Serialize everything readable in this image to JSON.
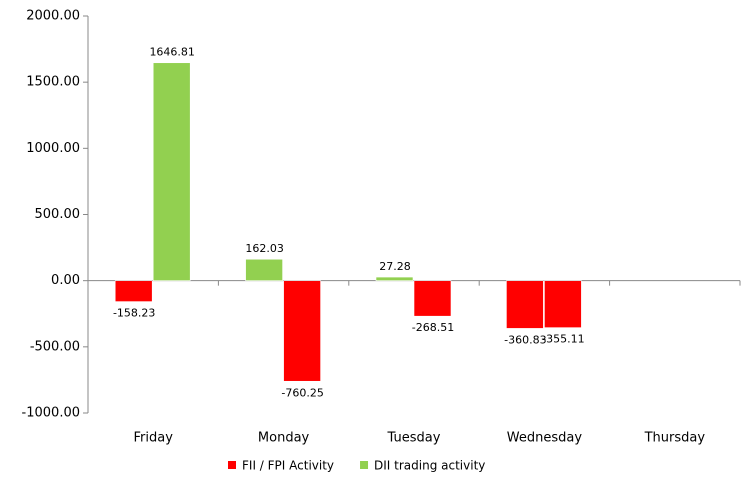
{
  "chart_data": {
    "type": "bar",
    "categories": [
      "Friday",
      "Monday",
      "Tuesday",
      "Wednesday",
      "Thursday"
    ],
    "series": [
      {
        "name": "FII / FPI Activity",
        "color": "#ff0000",
        "values": [
          -158.23,
          162.03,
          27.28,
          -360.83,
          null
        ]
      },
      {
        "name": "DII trading activity",
        "color": "#92d050",
        "values": [
          1646.81,
          -760.25,
          -268.51,
          -355.11,
          null
        ]
      }
    ],
    "positive_color": "#92d050",
    "negative_color": "#ff0000",
    "ylim": [
      -1000,
      2000
    ],
    "yticks": [
      {
        "value": -1000,
        "label": "-1000.00"
      },
      {
        "value": -500,
        "label": "-500.00"
      },
      {
        "value": 0,
        "label": "0.00"
      },
      {
        "value": 500,
        "label": "500.00"
      },
      {
        "value": 1000,
        "label": "1000.00"
      },
      {
        "value": 1500,
        "label": "1500.00"
      },
      {
        "value": 2000,
        "label": "2000.00"
      }
    ],
    "legend": "bottom"
  }
}
